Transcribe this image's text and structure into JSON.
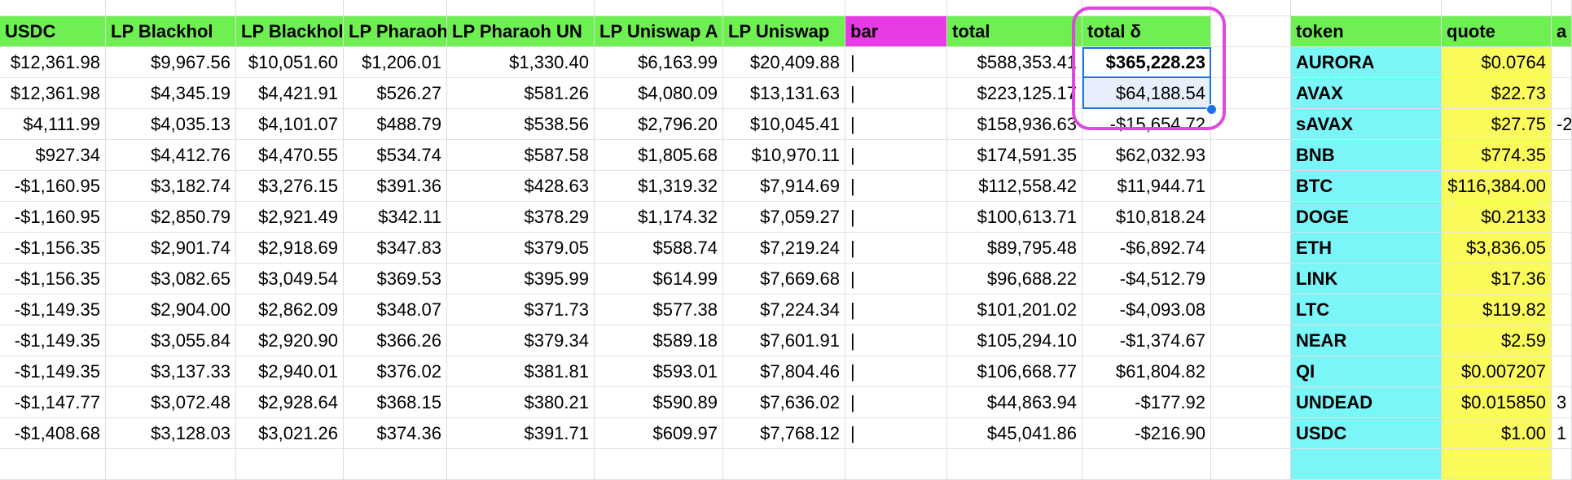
{
  "columns": {
    "main": [
      "USDC",
      "LP Blackhol",
      "LP Blackhol",
      "LP Pharaoh",
      "LP Pharaoh UN",
      "LP Uniswap A",
      "LP Uniswap",
      "bar",
      "total",
      "total δ"
    ],
    "side": [
      "token",
      "quote",
      "a"
    ]
  },
  "rows": [
    {
      "usdc": "$12,361.98",
      "lp_bh1": "$9,967.56",
      "lp_bh2": "$10,051.60",
      "lp_ph1": "$1,206.01",
      "lp_ph2": "$1,330.40",
      "lp_uni1": "$6,163.99",
      "lp_uni2": "$20,409.88",
      "bar": "|",
      "total": "$588,353.41",
      "delta": "$365,228.23"
    },
    {
      "usdc": "$12,361.98",
      "lp_bh1": "$4,345.19",
      "lp_bh2": "$4,421.91",
      "lp_ph1": "$526.27",
      "lp_ph2": "$581.26",
      "lp_uni1": "$4,080.09",
      "lp_uni2": "$13,131.63",
      "bar": "|",
      "total": "$223,125.17",
      "delta": "$64,188.54"
    },
    {
      "usdc": "$4,111.99",
      "lp_bh1": "$4,035.13",
      "lp_bh2": "$4,101.07",
      "lp_ph1": "$488.79",
      "lp_ph2": "$538.56",
      "lp_uni1": "$2,796.20",
      "lp_uni2": "$10,045.41",
      "bar": "|",
      "total": "$158,936.63",
      "delta": "-$15,654.72"
    },
    {
      "usdc": "$927.34",
      "lp_bh1": "$4,412.76",
      "lp_bh2": "$4,470.55",
      "lp_ph1": "$534.74",
      "lp_ph2": "$587.58",
      "lp_uni1": "$1,805.68",
      "lp_uni2": "$10,970.11",
      "bar": "|",
      "total": "$174,591.35",
      "delta": "$62,032.93"
    },
    {
      "usdc": "-$1,160.95",
      "lp_bh1": "$3,182.74",
      "lp_bh2": "$3,276.15",
      "lp_ph1": "$391.36",
      "lp_ph2": "$428.63",
      "lp_uni1": "$1,319.32",
      "lp_uni2": "$7,914.69",
      "bar": "|",
      "total": "$112,558.42",
      "delta": "$11,944.71"
    },
    {
      "usdc": "-$1,160.95",
      "lp_bh1": "$2,850.79",
      "lp_bh2": "$2,921.49",
      "lp_ph1": "$342.11",
      "lp_ph2": "$378.29",
      "lp_uni1": "$1,174.32",
      "lp_uni2": "$7,059.27",
      "bar": "|",
      "total": "$100,613.71",
      "delta": "$10,818.24"
    },
    {
      "usdc": "-$1,156.35",
      "lp_bh1": "$2,901.74",
      "lp_bh2": "$2,918.69",
      "lp_ph1": "$347.83",
      "lp_ph2": "$379.05",
      "lp_uni1": "$588.74",
      "lp_uni2": "$7,219.24",
      "bar": "|",
      "total": "$89,795.48",
      "delta": "-$6,892.74"
    },
    {
      "usdc": "-$1,156.35",
      "lp_bh1": "$3,082.65",
      "lp_bh2": "$3,049.54",
      "lp_ph1": "$369.53",
      "lp_ph2": "$395.99",
      "lp_uni1": "$614.99",
      "lp_uni2": "$7,669.68",
      "bar": "|",
      "total": "$96,688.22",
      "delta": "-$4,512.79"
    },
    {
      "usdc": "-$1,149.35",
      "lp_bh1": "$2,904.00",
      "lp_bh2": "$2,862.09",
      "lp_ph1": "$348.07",
      "lp_ph2": "$371.73",
      "lp_uni1": "$577.38",
      "lp_uni2": "$7,224.34",
      "bar": "|",
      "total": "$101,201.02",
      "delta": "-$4,093.08"
    },
    {
      "usdc": "-$1,149.35",
      "lp_bh1": "$3,055.84",
      "lp_bh2": "$2,920.90",
      "lp_ph1": "$366.26",
      "lp_ph2": "$379.34",
      "lp_uni1": "$589.18",
      "lp_uni2": "$7,601.91",
      "bar": "|",
      "total": "$105,294.10",
      "delta": "-$1,374.67"
    },
    {
      "usdc": "-$1,149.35",
      "lp_bh1": "$3,137.33",
      "lp_bh2": "$2,940.01",
      "lp_ph1": "$376.02",
      "lp_ph2": "$381.81",
      "lp_uni1": "$593.01",
      "lp_uni2": "$7,804.46",
      "bar": "|",
      "total": "$106,668.77",
      "delta": "$61,804.82"
    },
    {
      "usdc": "-$1,147.77",
      "lp_bh1": "$3,072.48",
      "lp_bh2": "$2,928.64",
      "lp_ph1": "$368.15",
      "lp_ph2": "$380.21",
      "lp_uni1": "$590.89",
      "lp_uni2": "$7,636.02",
      "bar": "|",
      "total": "$44,863.94",
      "delta": "-$177.92"
    },
    {
      "usdc": "-$1,408.68",
      "lp_bh1": "$3,128.03",
      "lp_bh2": "$3,021.26",
      "lp_ph1": "$374.36",
      "lp_ph2": "$391.71",
      "lp_uni1": "$609.97",
      "lp_uni2": "$7,768.12",
      "bar": "|",
      "total": "$45,041.86",
      "delta": "-$216.90"
    }
  ],
  "tokens": [
    {
      "token": "AURORA",
      "quote": "$0.0764",
      "extra": ""
    },
    {
      "token": "AVAX",
      "quote": "$22.73",
      "extra": ""
    },
    {
      "token": "sAVAX",
      "quote": "$27.75",
      "extra": "-2"
    },
    {
      "token": "BNB",
      "quote": "$774.35",
      "extra": ""
    },
    {
      "token": "BTC",
      "quote": "$116,384.00",
      "extra": ""
    },
    {
      "token": "DOGE",
      "quote": "$0.2133",
      "extra": ""
    },
    {
      "token": "ETH",
      "quote": "$3,836.05",
      "extra": ""
    },
    {
      "token": "LINK",
      "quote": "$17.36",
      "extra": ""
    },
    {
      "token": "LTC",
      "quote": "$119.82",
      "extra": ""
    },
    {
      "token": "NEAR",
      "quote": "$2.59",
      "extra": ""
    },
    {
      "token": "QI",
      "quote": "$0.007207",
      "extra": ""
    },
    {
      "token": "UNDEAD",
      "quote": "$0.015850",
      "extra": "3"
    },
    {
      "token": "USDC",
      "quote": "$1.00",
      "extra": "1"
    }
  ],
  "selection": {
    "active_row": 0,
    "range_rows": [
      0,
      1
    ]
  },
  "colors": {
    "header_green": "#6ef052",
    "bar_pink": "#e83be6",
    "token_cyan": "#7af5f8",
    "quote_yellow": "#fafa5a",
    "highlight": "#e046e0",
    "selection_blue": "#1a73e8"
  }
}
